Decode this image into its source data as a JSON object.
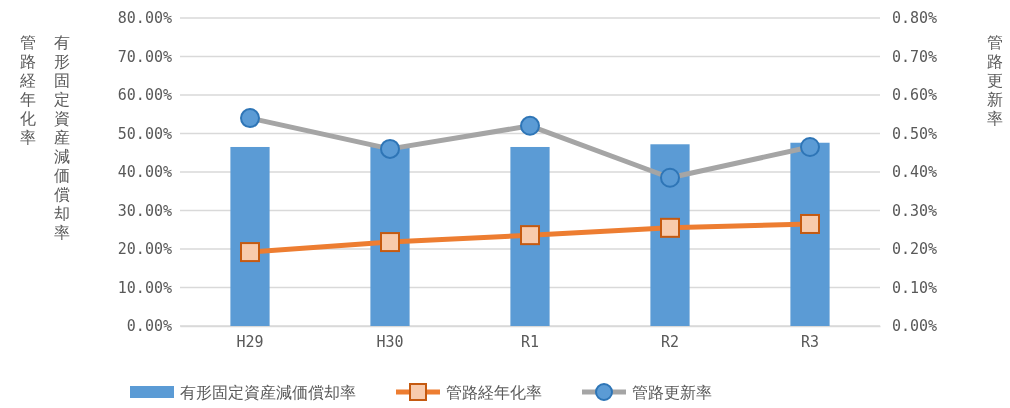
{
  "chart_data": {
    "type": "bar",
    "categories": [
      "H29",
      "H30",
      "R1",
      "R2",
      "R3"
    ],
    "ylabel": "有形固定資産減価償却率",
    "y2label": "管路更新率",
    "annotations": [
      "管路経年化率"
    ],
    "series": [
      {
        "name": "有形固定資産減価償却率",
        "color": "#5b9bd5",
        "values": [
          46.5,
          46.5,
          46.5,
          47.2,
          47.6
        ]
      },
      {
        "name": "管路経年化率",
        "type": "line",
        "color": "#ed7d31",
        "marker": "square",
        "values": [
          19.2,
          21.8,
          23.6,
          25.5,
          26.5
        ]
      },
      {
        "name": "管路更新率",
        "type": "line",
        "color": "#a5a5a5",
        "marker": "circle",
        "axis": "y2",
        "values": [
          0.54,
          0.46,
          0.52,
          0.385,
          0.465
        ]
      }
    ],
    "ylim": [
      0,
      80
    ],
    "yticks": [
      {
        "value": 0,
        "label": "0.00%"
      },
      {
        "value": 10,
        "label": "10.00%"
      },
      {
        "value": 20,
        "label": "20.00%"
      },
      {
        "value": 30,
        "label": "30.00%"
      },
      {
        "value": 40,
        "label": "40.00%"
      },
      {
        "value": 50,
        "label": "50.00%"
      },
      {
        "value": 60,
        "label": "60.00%"
      },
      {
        "value": 70,
        "label": "70.00%"
      },
      {
        "value": 80,
        "label": "80.00%"
      }
    ],
    "y2lim": [
      0,
      0.8
    ],
    "y2ticks": [
      {
        "value": 0,
        "label": "0.00%"
      },
      {
        "value": 0.1,
        "label": "0.10%"
      },
      {
        "value": 0.2,
        "label": "0.20%"
      },
      {
        "value": 0.3,
        "label": "0.30%"
      },
      {
        "value": 0.4,
        "label": "0.40%"
      },
      {
        "value": 0.5,
        "label": "0.50%"
      },
      {
        "value": 0.6,
        "label": "0.60%"
      },
      {
        "value": 0.7,
        "label": "0.70%"
      },
      {
        "value": 0.8,
        "label": "0.80%"
      }
    ],
    "grid": "y",
    "legend": "bottom"
  }
}
